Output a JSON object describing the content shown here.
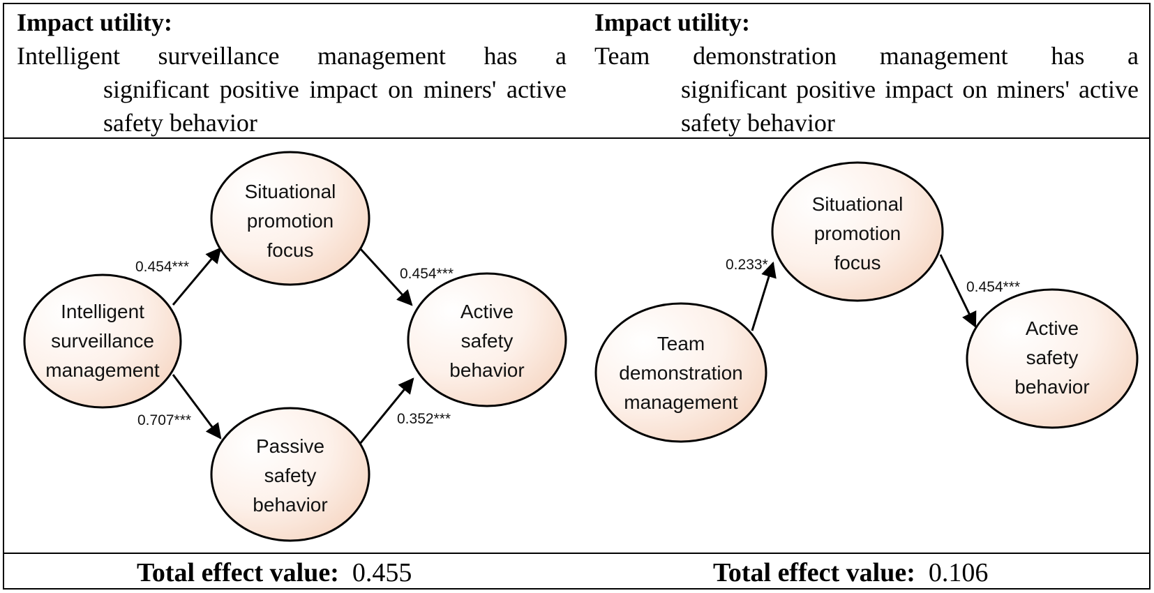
{
  "left_panel": {
    "heading": "Impact utility:",
    "statement_first": "Intelligent surveillance management has a",
    "statement_rest": "significant positive impact on miners' active safety behavior",
    "nodes": {
      "source": [
        "Intelligent",
        "surveillance",
        "management"
      ],
      "promotion": [
        "Situational",
        "promotion",
        "focus"
      ],
      "passive": [
        "Passive",
        "safety",
        "behavior"
      ],
      "active": [
        "Active",
        "safety",
        "behavior"
      ]
    },
    "paths": {
      "source_to_promotion": "0.454***",
      "promotion_to_active": "0.454***",
      "source_to_passive": "0.707***",
      "passive_to_active": "0.352***"
    },
    "total_label": "Total effect value:",
    "total_value": "0.455"
  },
  "right_panel": {
    "heading": "Impact utility:",
    "statement_first": "Team demonstration management has a",
    "statement_rest": "significant positive impact on miners' active safety behavior",
    "nodes": {
      "source": [
        "Team",
        "demonstration",
        "management"
      ],
      "promotion": [
        "Situational",
        "promotion",
        "focus"
      ],
      "active": [
        "Active",
        "safety",
        "behavior"
      ]
    },
    "paths": {
      "source_to_promotion": "0.233*",
      "promotion_to_active": "0.454***"
    },
    "total_label": "Total effect value:",
    "total_value": "0.106"
  },
  "colors": {
    "node_center": "#ffffff",
    "node_edge": "#f6d9c8",
    "stroke": "#000000"
  }
}
